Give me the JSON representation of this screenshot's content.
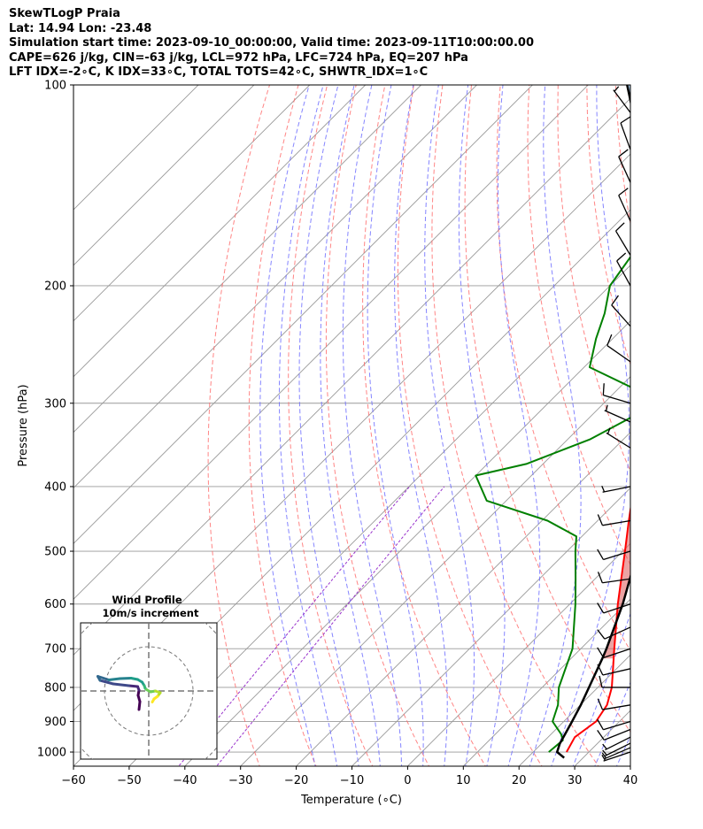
{
  "header": {
    "line1": "SkewTLogP Praia",
    "line2": "Lat: 14.94   Lon: -23.48",
    "line3": "Simulation start time: 2023-09-10_00:00:00, Valid time: 2023-09-11T10:00:00.00",
    "line4": "CAPE=626 j/kg, CIN=-63 j/kg, LCL=972 hPa, LFC=724 hPa, EQ=207 hPa",
    "line5": "LFT IDX=-2∘C, K IDX=33∘C, TOTAL TOTS=42∘C, SHWTR_IDX=1∘C"
  },
  "chart_data": {
    "type": "line",
    "xlabel": "Temperature (∘C)",
    "ylabel": "Pressure (hPa)",
    "xlim": [
      -60,
      40
    ],
    "ylim": [
      1050,
      100
    ],
    "yscale": "log",
    "grid": true,
    "x_ticks": [
      -60,
      -50,
      -40,
      -30,
      -20,
      -10,
      0,
      10,
      20,
      30,
      40
    ],
    "y_ticks": [
      100,
      200,
      300,
      400,
      500,
      600,
      700,
      800,
      900,
      1000
    ],
    "colors": {
      "temperature": "#ff0000",
      "dewpoint": "#008000",
      "parcel": "#000000",
      "cape_fill": "#e06666",
      "cin_fill": "#6fa8dc",
      "dry_adiabats": "#ff6666",
      "moist_adiabats": "#6666ff",
      "mixing_ratio": "#9933cc",
      "isotherms": "#999999"
    },
    "series": [
      {
        "values": [
          {
            "p": 1000,
            "t": 26.0
          },
          {
            "p": 950,
            "t": 24.8
          },
          {
            "p": 900,
            "t": 25.8
          },
          {
            "p": 850,
            "t": 24.8
          },
          {
            "p": 800,
            "t": 22.5
          },
          {
            "p": 700,
            "t": 16.0
          },
          {
            "p": 600,
            "t": 8.6
          },
          {
            "p": 500,
            "t": 0.4
          },
          {
            "p": 450,
            "t": -4.4
          },
          {
            "p": 400,
            "t": -9.6
          },
          {
            "p": 350,
            "t": -16.0
          },
          {
            "p": 300,
            "t": -23.5
          },
          {
            "p": 250,
            "t": -33.0
          },
          {
            "p": 200,
            "t": -44.0
          },
          {
            "p": 175,
            "t": -49.5
          },
          {
            "p": 150,
            "t": -56.5
          },
          {
            "p": 125,
            "t": -64.0
          },
          {
            "p": 110,
            "t": -66.5
          },
          {
            "p": 100,
            "t": -70.5
          }
        ]
      },
      {
        "values": [
          {
            "p": 1000,
            "t": 22.8
          },
          {
            "p": 960,
            "t": 23.2
          },
          {
            "p": 940,
            "t": 21.8
          },
          {
            "p": 900,
            "t": 18.0
          },
          {
            "p": 850,
            "t": 16.0
          },
          {
            "p": 800,
            "t": 13.0
          },
          {
            "p": 700,
            "t": 8.5
          },
          {
            "p": 600,
            "t": 1.0
          },
          {
            "p": 550,
            "t": -3.5
          },
          {
            "p": 500,
            "t": -8.5
          },
          {
            "p": 475,
            "t": -11.0
          },
          {
            "p": 450,
            "t": -19.0
          },
          {
            "p": 420,
            "t": -33.5
          },
          {
            "p": 385,
            "t": -40.0
          },
          {
            "p": 370,
            "t": -33.0
          },
          {
            "p": 340,
            "t": -26.0
          },
          {
            "p": 315,
            "t": -22.5
          },
          {
            "p": 290,
            "t": -24.5
          },
          {
            "p": 265,
            "t": -39.0
          },
          {
            "p": 240,
            "t": -43.0
          },
          {
            "p": 220,
            "t": -46.0
          },
          {
            "p": 200,
            "t": -50.0
          },
          {
            "p": 175,
            "t": -52.0
          },
          {
            "p": 160,
            "t": -52.5
          },
          {
            "p": 145,
            "t": -58.5
          },
          {
            "p": 125,
            "t": -65.5
          },
          {
            "p": 110,
            "t": -68.0
          },
          {
            "p": 100,
            "t": -72.0
          }
        ]
      },
      {
        "values": [
          {
            "p": 1020,
            "t": 26.6
          },
          {
            "p": 1000,
            "t": 24.3
          },
          {
            "p": 972,
            "t": 23.3
          },
          {
            "p": 900,
            "t": 21.5
          },
          {
            "p": 850,
            "t": 20.1
          },
          {
            "p": 800,
            "t": 18.4
          },
          {
            "p": 724,
            "t": 15.6
          },
          {
            "p": 700,
            "t": 14.6
          },
          {
            "p": 600,
            "t": 9.5
          },
          {
            "p": 500,
            "t": 2.7
          },
          {
            "p": 450,
            "t": -1.5
          },
          {
            "p": 400,
            "t": -6.3
          },
          {
            "p": 350,
            "t": -12.3
          },
          {
            "p": 300,
            "t": -19.8
          },
          {
            "p": 250,
            "t": -29.3
          },
          {
            "p": 207,
            "t": -40.0
          },
          {
            "p": 200,
            "t": -42.0
          },
          {
            "p": 175,
            "t": -49.5
          },
          {
            "p": 150,
            "t": -58.5
          },
          {
            "p": 125,
            "t": -69.5
          },
          {
            "p": 110,
            "t": -77.0
          },
          {
            "p": 100,
            "t": -83.0
          }
        ]
      }
    ],
    "wind_barbs": [
      {
        "p": 1000,
        "u": -3.0,
        "v": -1.0
      },
      {
        "p": 985,
        "u": -3.5,
        "v": -1.5
      },
      {
        "p": 970,
        "u": -4.0,
        "v": -2.0
      },
      {
        "p": 950,
        "u": -4.0,
        "v": -2.0
      },
      {
        "p": 925,
        "u": -5.0,
        "v": -2.0
      },
      {
        "p": 900,
        "u": -5.0,
        "v": -1.5
      },
      {
        "p": 850,
        "u": -6.0,
        "v": -1.0
      },
      {
        "p": 800,
        "u": -7.0,
        "v": 0.0
      },
      {
        "p": 750,
        "u": -6.5,
        "v": -1.5
      },
      {
        "p": 700,
        "u": -6.0,
        "v": -2.0
      },
      {
        "p": 650,
        "u": -5.5,
        "v": -2.5
      },
      {
        "p": 600,
        "u": -6.0,
        "v": -2.0
      },
      {
        "p": 550,
        "u": -7.0,
        "v": -1.0
      },
      {
        "p": 500,
        "u": -6.5,
        "v": -2.0
      },
      {
        "p": 450,
        "u": -6.0,
        "v": -1.0
      },
      {
        "p": 400,
        "u": -5.0,
        "v": -1.0
      },
      {
        "p": 350,
        "u": -4.0,
        "v": 2.5
      },
      {
        "p": 320,
        "u": -4.5,
        "v": 2.0
      },
      {
        "p": 300,
        "u": -5.0,
        "v": 1.5
      },
      {
        "p": 260,
        "u": -5.0,
        "v": 3.5
      },
      {
        "p": 230,
        "u": -4.0,
        "v": 4.5
      },
      {
        "p": 200,
        "u": -3.0,
        "v": 5.5
      },
      {
        "p": 180,
        "u": -3.0,
        "v": 5.0
      },
      {
        "p": 160,
        "u": -2.5,
        "v": 5.5
      },
      {
        "p": 140,
        "u": -2.5,
        "v": 5.5
      },
      {
        "p": 125,
        "u": -2.0,
        "v": 5.5
      },
      {
        "p": 110,
        "u": -3.0,
        "v": 4.0
      }
    ],
    "hodograph": {
      "title": "Wind Profile",
      "subtitle": "10m/s increment",
      "points": [
        {
          "u": 0.8,
          "v": -2.5
        },
        {
          "u": 1.2,
          "v": -1.8
        },
        {
          "u": 2.0,
          "v": -1.2
        },
        {
          "u": 2.6,
          "v": -0.4
        },
        {
          "u": 1.5,
          "v": 0.0
        },
        {
          "u": 0.4,
          "v": -0.2
        },
        {
          "u": -0.5,
          "v": 0.3
        },
        {
          "u": -0.8,
          "v": 0.6
        },
        {
          "u": -1.0,
          "v": 1.2
        },
        {
          "u": -1.5,
          "v": 2.0
        },
        {
          "u": -2.5,
          "v": 2.6
        },
        {
          "u": -4.0,
          "v": 2.9
        },
        {
          "u": -6.5,
          "v": 2.8
        },
        {
          "u": -9.0,
          "v": 2.5
        },
        {
          "u": -11.5,
          "v": 3.3
        },
        {
          "u": -11.0,
          "v": 2.4
        },
        {
          "u": -8.0,
          "v": 1.6
        },
        {
          "u": -4.5,
          "v": 1.2
        },
        {
          "u": -2.5,
          "v": 1.0
        },
        {
          "u": -2.2,
          "v": 0.2
        },
        {
          "u": -2.4,
          "v": -1.0
        },
        {
          "u": -2.0,
          "v": -2.4
        },
        {
          "u": -2.2,
          "v": -4.2
        }
      ]
    }
  }
}
